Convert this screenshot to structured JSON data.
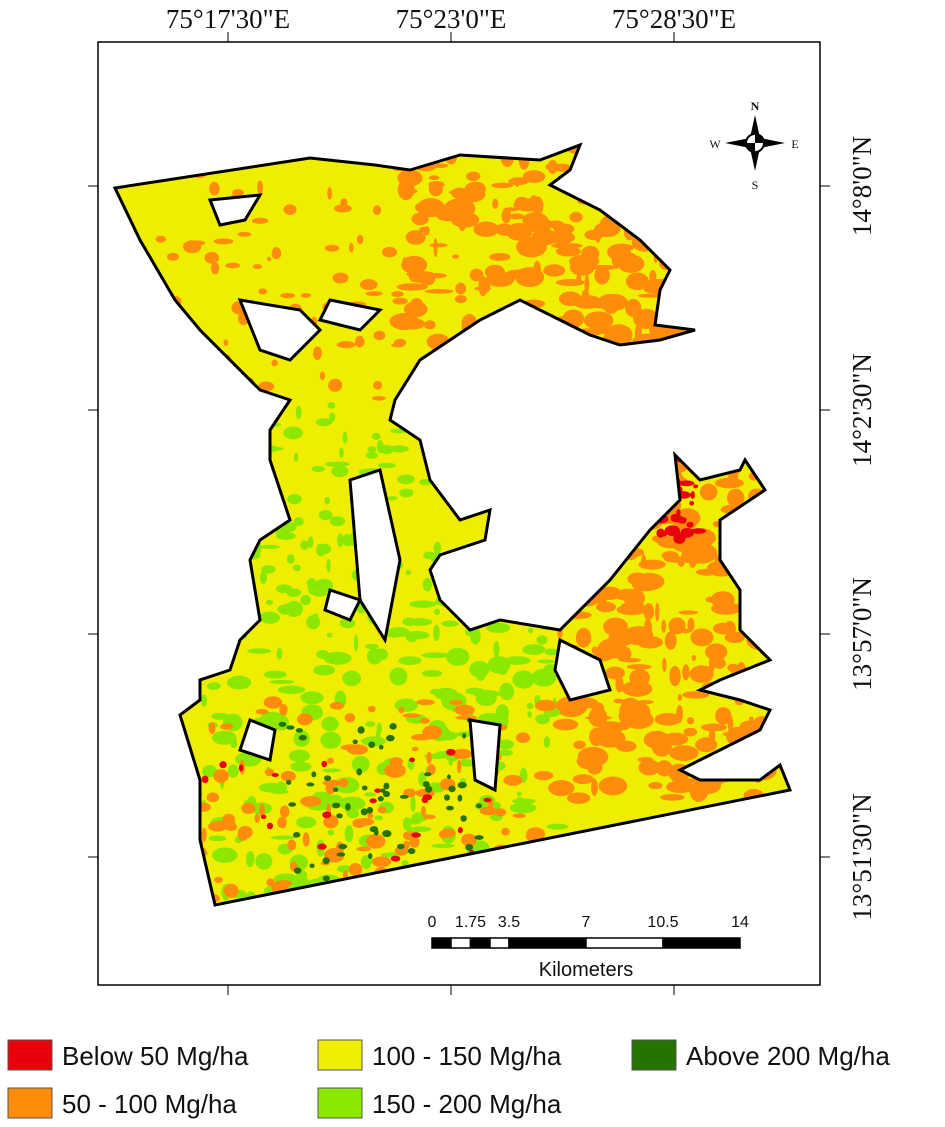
{
  "map": {
    "x_labels": [
      "75°17'30\"E",
      "75°23'0\"E",
      "75°28'30\"E"
    ],
    "y_labels": [
      "14°8'0\"N",
      "14°2'30\"N",
      "13°57'0\"N",
      "13°51'30\"N"
    ],
    "compass": {
      "n": "N",
      "w": "W",
      "e": "E",
      "s": "S"
    },
    "scale": {
      "labels": [
        "0",
        "1.75",
        "3.5",
        "7",
        "10.5",
        "14"
      ],
      "unit": "Kilometers"
    },
    "legend": [
      {
        "label": "Below 50 Mg/ha",
        "color": "#e8000b"
      },
      {
        "label": "50 - 100 Mg/ha",
        "color": "#ff8c0a"
      },
      {
        "label": "100 - 150 Mg/ha",
        "color": "#f0ee00"
      },
      {
        "label": "150 - 200 Mg/ha",
        "color": "#8de800"
      },
      {
        "label": "Above 200 Mg/ha",
        "color": "#267300"
      }
    ]
  }
}
